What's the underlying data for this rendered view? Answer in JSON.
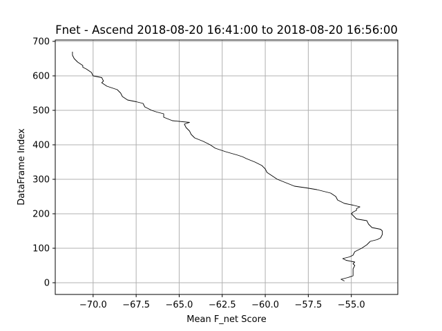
{
  "chart_data": {
    "type": "line",
    "title": "Fnet - Ascend 2018-08-20 16:41:00 to 2018-08-20 16:56:00",
    "xlabel": "Mean F_net Score",
    "ylabel": "DataFrame Index",
    "xlim": [
      -72.2,
      -52.3
    ],
    "ylim": [
      -34,
      704
    ],
    "grid": true,
    "xticks": [
      -70.0,
      -67.5,
      -65.0,
      -62.5,
      -60.0,
      -57.5,
      -55.0
    ],
    "xtick_labels": [
      "−70.0",
      "−67.5",
      "−65.0",
      "−62.5",
      "−60.0",
      "−57.5",
      "−55.0"
    ],
    "yticks": [
      0,
      100,
      200,
      300,
      400,
      500,
      600,
      700
    ],
    "ytick_labels": [
      "0",
      "100",
      "200",
      "300",
      "400",
      "500",
      "600",
      "700"
    ],
    "series": [
      {
        "color": "#000000",
        "points": [
          [
            -55.4,
            5
          ],
          [
            -55.6,
            10
          ],
          [
            -55.2,
            15
          ],
          [
            -54.9,
            20
          ],
          [
            -54.9,
            30
          ],
          [
            -54.9,
            40
          ],
          [
            -54.8,
            50
          ],
          [
            -54.9,
            55
          ],
          [
            -54.8,
            60
          ],
          [
            -55.3,
            65
          ],
          [
            -55.5,
            70
          ],
          [
            -55.1,
            75
          ],
          [
            -54.9,
            80
          ],
          [
            -54.8,
            90
          ],
          [
            -54.6,
            95
          ],
          [
            -54.4,
            100
          ],
          [
            -54.1,
            110
          ],
          [
            -53.9,
            120
          ],
          [
            -53.5,
            125
          ],
          [
            -53.3,
            130
          ],
          [
            -53.2,
            140
          ],
          [
            -53.2,
            150
          ],
          [
            -53.3,
            155
          ],
          [
            -53.8,
            160
          ],
          [
            -54.0,
            170
          ],
          [
            -54.1,
            180
          ],
          [
            -54.7,
            185
          ],
          [
            -54.9,
            195
          ],
          [
            -55.0,
            200
          ],
          [
            -54.9,
            205
          ],
          [
            -54.7,
            210
          ],
          [
            -54.7,
            215
          ],
          [
            -54.5,
            220
          ],
          [
            -54.9,
            225
          ],
          [
            -55.4,
            230
          ],
          [
            -55.8,
            240
          ],
          [
            -55.9,
            250
          ],
          [
            -56.2,
            260
          ],
          [
            -56.6,
            265
          ],
          [
            -57.0,
            270
          ],
          [
            -57.6,
            275
          ],
          [
            -58.3,
            280
          ],
          [
            -58.8,
            290
          ],
          [
            -59.3,
            300
          ],
          [
            -59.6,
            310
          ],
          [
            -59.9,
            320
          ],
          [
            -60.0,
            330
          ],
          [
            -60.2,
            340
          ],
          [
            -60.6,
            350
          ],
          [
            -61.1,
            360
          ],
          [
            -61.3,
            365
          ],
          [
            -61.6,
            370
          ],
          [
            -62.3,
            380
          ],
          [
            -62.9,
            390
          ],
          [
            -63.2,
            400
          ],
          [
            -63.6,
            410
          ],
          [
            -64.1,
            420
          ],
          [
            -64.3,
            430
          ],
          [
            -64.4,
            440
          ],
          [
            -64.6,
            450
          ],
          [
            -64.7,
            460
          ],
          [
            -64.4,
            465
          ],
          [
            -65.4,
            470
          ],
          [
            -65.9,
            480
          ],
          [
            -65.9,
            490
          ],
          [
            -66.3,
            495
          ],
          [
            -66.6,
            500
          ],
          [
            -67.0,
            510
          ],
          [
            -67.1,
            520
          ],
          [
            -67.5,
            525
          ],
          [
            -68.0,
            530
          ],
          [
            -68.3,
            540
          ],
          [
            -68.4,
            550
          ],
          [
            -68.6,
            560
          ],
          [
            -68.9,
            565
          ],
          [
            -69.2,
            570
          ],
          [
            -69.5,
            580
          ],
          [
            -69.4,
            585
          ],
          [
            -69.5,
            595
          ],
          [
            -70.0,
            600
          ],
          [
            -70.1,
            610
          ],
          [
            -70.4,
            620
          ],
          [
            -70.6,
            625
          ],
          [
            -70.6,
            630
          ],
          [
            -70.9,
            640
          ],
          [
            -71.1,
            650
          ],
          [
            -71.2,
            660
          ],
          [
            -71.2,
            670
          ]
        ]
      }
    ]
  }
}
